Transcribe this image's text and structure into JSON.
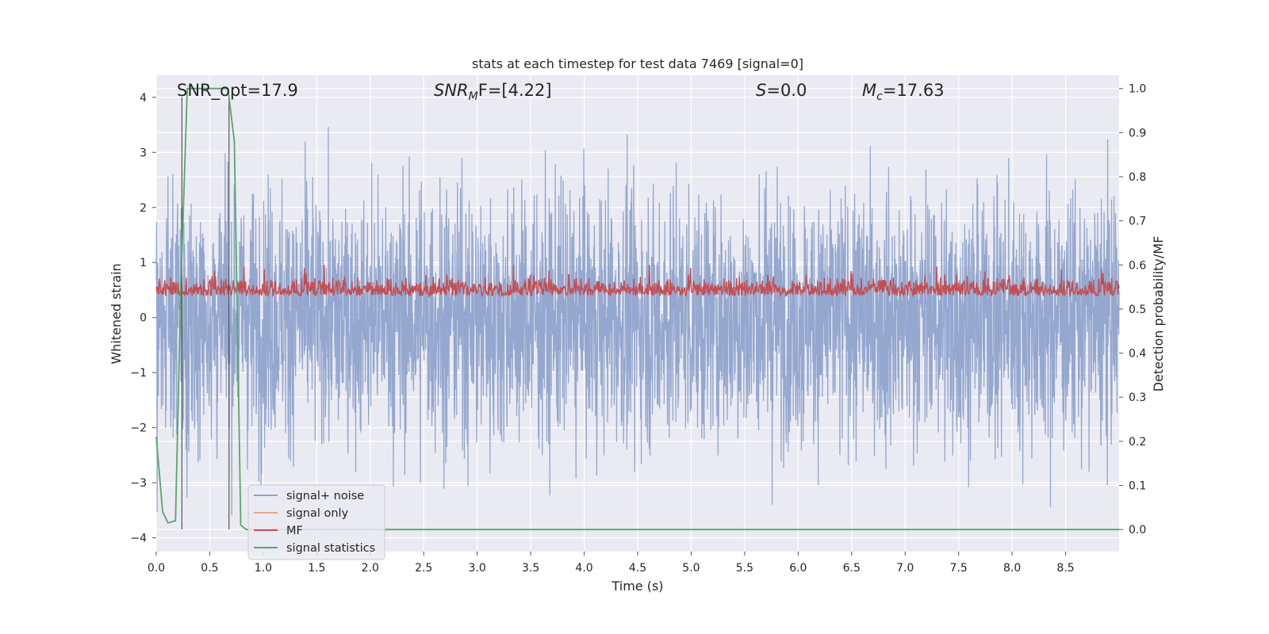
{
  "chart_data": {
    "type": "line",
    "title": "stats at each timestep for test data 7469 [signal=0]",
    "xlabel": "Time (s)",
    "ylabel_left": "Whitened strain",
    "ylabel_right": "Detection probability/MF",
    "xlim": [
      0.0,
      9.0
    ],
    "ylim_left": [
      -4.25,
      4.4
    ],
    "ylim_right": [
      -0.05,
      1.03
    ],
    "x_ticks": [
      "0.0",
      "0.5",
      "1.0",
      "1.5",
      "2.0",
      "2.5",
      "3.0",
      "3.5",
      "4.0",
      "4.5",
      "5.0",
      "5.5",
      "6.0",
      "6.5",
      "7.0",
      "7.5",
      "8.0",
      "8.5"
    ],
    "y_ticks_left": [
      "4",
      "3",
      "2",
      "1",
      "0",
      "−1",
      "−2",
      "−3",
      "−4"
    ],
    "y_ticks_right": [
      "1.0",
      "0.9",
      "0.8",
      "0.7",
      "0.6",
      "0.5",
      "0.4",
      "0.3",
      "0.2",
      "0.1",
      "0.0"
    ],
    "annotations": {
      "snr_opt": "SNR_opt=17.9",
      "snr_mf_prefix": "SNR",
      "snr_mf_sub": "M",
      "snr_mf_suffix": "F=[4.22]",
      "s_label": "S",
      "s_value": "=0.0",
      "mc_label": "M",
      "mc_sub": "c",
      "mc_value": "=17.63"
    },
    "vertical_markers_s": [
      0.24,
      0.68
    ],
    "series": [
      {
        "name": "signal+ noise",
        "color": "#8fa3cc",
        "axis": "left",
        "description": "whitened strain noise, approx range -3.6 to 4.0"
      },
      {
        "name": "signal only",
        "color": "#e8a88a",
        "axis": "left"
      },
      {
        "name": "MF",
        "color": "#c44e52",
        "axis": "right",
        "description": "matched filter, approx range 0.5 to 0.6"
      },
      {
        "name": "signal statistics",
        "color": "#55a868",
        "axis": "right",
        "x": [
          0.0,
          0.06,
          0.11,
          0.18,
          0.23,
          0.29,
          0.34,
          0.44,
          0.54,
          0.67,
          0.73,
          0.79,
          0.84,
          0.9,
          1.2,
          9.0
        ],
        "values": [
          0.21,
          0.04,
          0.015,
          0.02,
          0.55,
          1.0,
          1.0,
          1.0,
          1.0,
          1.0,
          0.88,
          0.01,
          0.0,
          0.0,
          0.0,
          0.0
        ]
      }
    ],
    "legend": {
      "placement": "lower-left",
      "entries": [
        "signal+ noise",
        "signal only",
        "MF",
        "signal statistics"
      ]
    }
  }
}
